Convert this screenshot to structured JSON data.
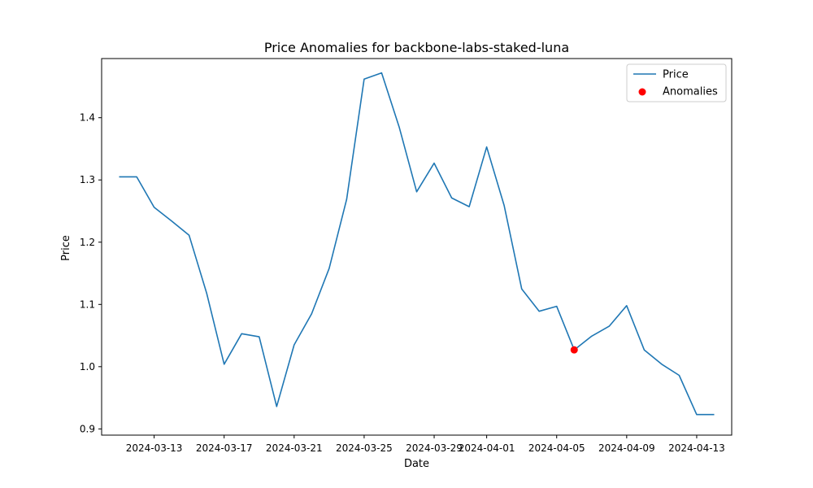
{
  "chart_data": {
    "type": "line",
    "title": "Price Anomalies for backbone-labs-staked-luna",
    "xlabel": "Date",
    "ylabel": "Price",
    "ylim": [
      0.89,
      1.495
    ],
    "xlim": [
      "2024-03-10",
      "2024-04-15"
    ],
    "grid": false,
    "legend_position": "top-right",
    "x_ticks": [
      "2024-03-13",
      "2024-03-17",
      "2024-03-21",
      "2024-03-25",
      "2024-03-29",
      "2024-04-01",
      "2024-04-05",
      "2024-04-09",
      "2024-04-13"
    ],
    "y_ticks": [
      0.9,
      1.0,
      1.1,
      1.2,
      1.3,
      1.4
    ],
    "series": [
      {
        "name": "Price",
        "color": "#1f77b4",
        "x": [
          "2024-03-11",
          "2024-03-12",
          "2024-03-13",
          "2024-03-14",
          "2024-03-15",
          "2024-03-16",
          "2024-03-17",
          "2024-03-18",
          "2024-03-19",
          "2024-03-20",
          "2024-03-21",
          "2024-03-22",
          "2024-03-23",
          "2024-03-24",
          "2024-03-25",
          "2024-03-26",
          "2024-03-27",
          "2024-03-28",
          "2024-03-29",
          "2024-03-30",
          "2024-03-31",
          "2024-04-01",
          "2024-04-02",
          "2024-04-03",
          "2024-04-04",
          "2024-04-05",
          "2024-04-06",
          "2024-04-07",
          "2024-04-08",
          "2024-04-09",
          "2024-04-10",
          "2024-04-11",
          "2024-04-12",
          "2024-04-13",
          "2024-04-14"
        ],
        "y": [
          1.305,
          1.305,
          1.256,
          1.234,
          1.211,
          1.118,
          1.004,
          1.053,
          1.048,
          0.936,
          1.035,
          1.085,
          1.158,
          1.269,
          1.462,
          1.472,
          1.385,
          1.281,
          1.327,
          1.271,
          1.257,
          1.353,
          1.259,
          1.125,
          1.089,
          1.097,
          1.027,
          1.049,
          1.065,
          1.098,
          1.027,
          1.004,
          0.986,
          0.923,
          0.923
        ]
      },
      {
        "name": "Anomalies",
        "color": "#ff0000",
        "kind": "scatter",
        "x": [
          "2024-04-06"
        ],
        "y": [
          1.027
        ]
      }
    ]
  }
}
